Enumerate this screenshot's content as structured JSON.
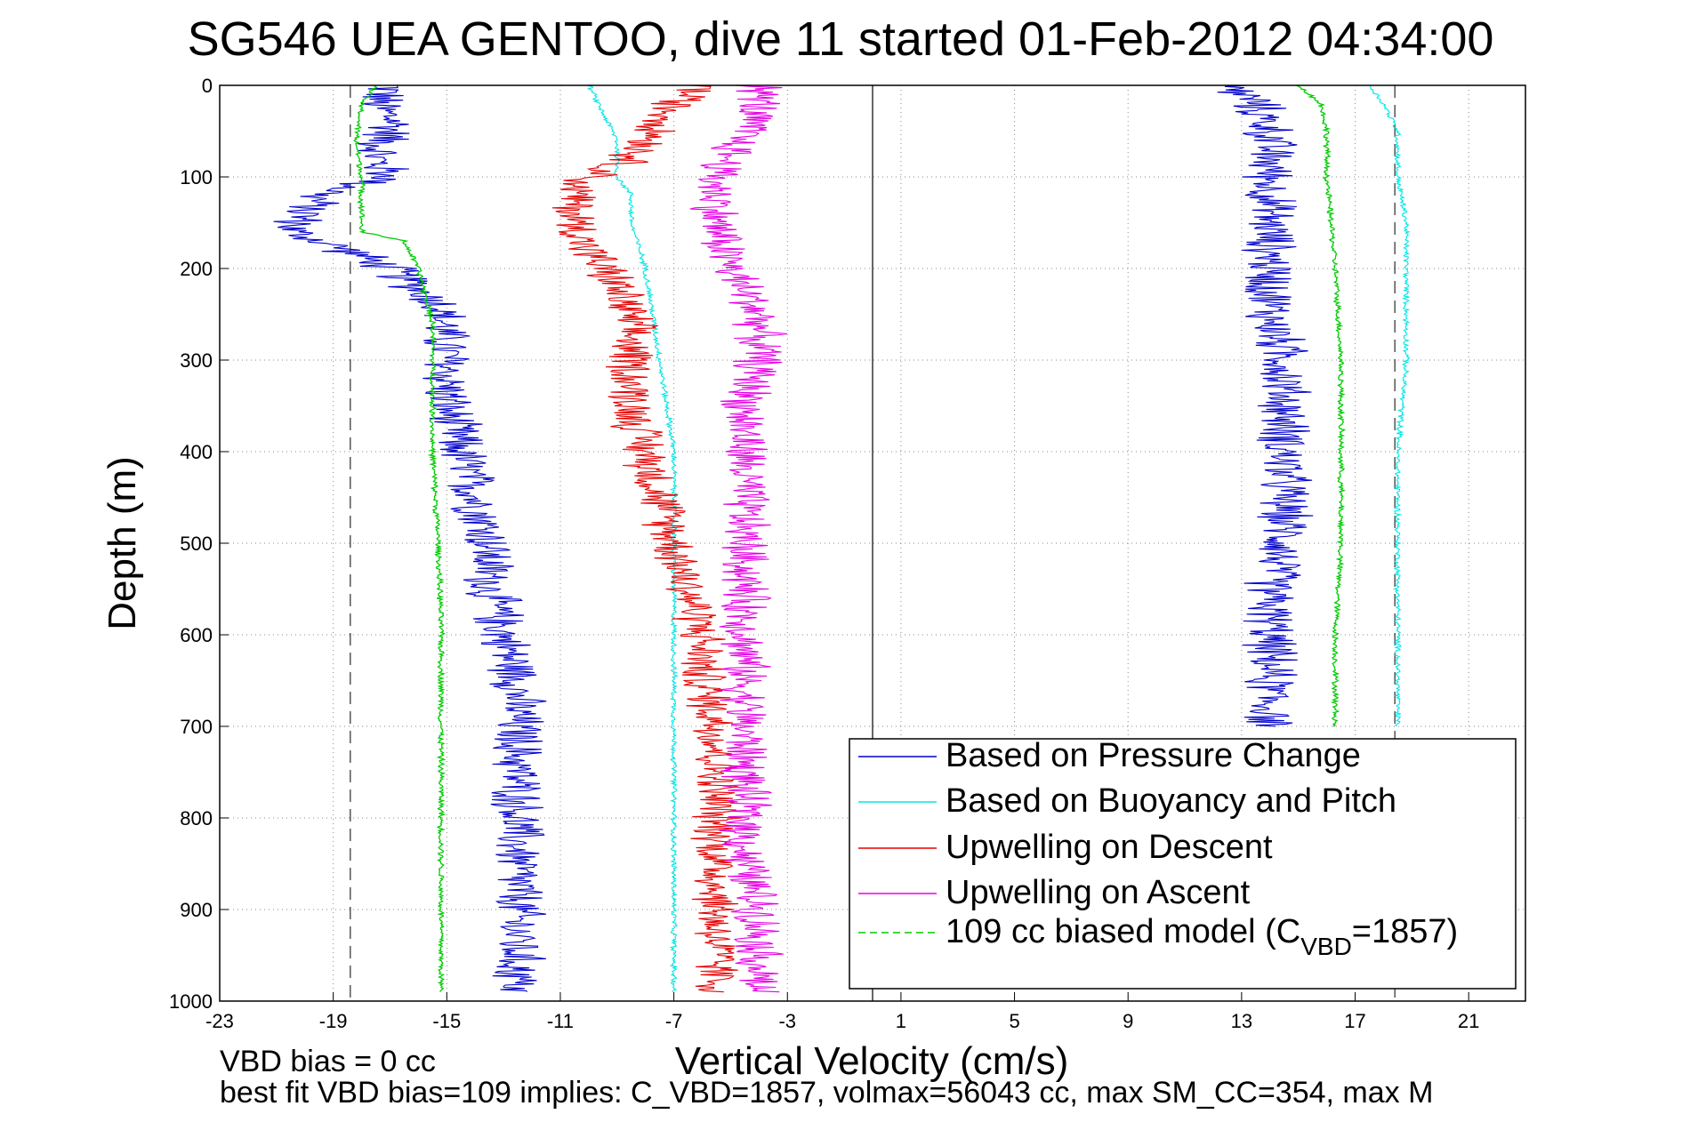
{
  "chart_data": {
    "type": "line",
    "title": "SG546 UEA GENTOO, dive 11 started 01-Feb-2012 04:34:00",
    "xlabel": "Vertical Velocity (cm/s)",
    "ylabel": "Depth (m)",
    "xlim": [
      -23,
      23
    ],
    "ylim": [
      0,
      1000
    ],
    "y_reversed": true,
    "xticks": [
      -23,
      -19,
      -15,
      -11,
      -7,
      -3,
      1,
      5,
      9,
      13,
      17,
      21
    ],
    "yticks": [
      0,
      100,
      200,
      300,
      400,
      500,
      600,
      700,
      800,
      900,
      1000
    ],
    "grid": true,
    "legend_position": "bottom-right",
    "reference_lines": {
      "vertical_zero": 0,
      "dashed_descent": -18.4,
      "dashed_ascent": 18.4
    },
    "series": [
      {
        "name": "Based on Pressure Change",
        "color": "#0000cc",
        "style": "solid",
        "noise": 1.1,
        "profiles": [
          {
            "depth": [
              0,
              20,
              40,
              60,
              80,
              100,
              120,
              140,
              160,
              180,
              200,
              240,
              300,
              350,
              400,
              450,
              500,
              550,
              600,
              650,
              700,
              750,
              800,
              850,
              900,
              950,
              990
            ],
            "value": [
              -17,
              -17.5,
              -16.8,
              -17.2,
              -17.5,
              -17,
              -19.5,
              -20,
              -20.5,
              -18.5,
              -17,
              -15.2,
              -15,
              -15,
              -14.5,
              -14,
              -13.5,
              -13.5,
              -13,
              -12.5,
              -12.5,
              -12.5,
              -12.5,
              -12.5,
              -12.5,
              -12.5,
              -12.5
            ]
          },
          {
            "depth": [
              0,
              20,
              50,
              100,
              150,
              200,
              250,
              300,
              350,
              400,
              450,
              500,
              550,
              600,
              650,
              700
            ],
            "value": [
              12.5,
              13.5,
              14,
              14,
              14,
              14,
              14,
              14.5,
              14.5,
              14.5,
              14.5,
              14.5,
              14,
              14,
              14,
              14
            ]
          }
        ]
      },
      {
        "name": "Based on Buoyancy and Pitch",
        "color": "#00e5e5",
        "style": "solid",
        "noise": 0.12,
        "profiles": [
          {
            "depth": [
              0,
              30,
              60,
              100,
              120,
              150,
              200,
              300,
              400,
              500,
              600,
              700,
              800,
              900,
              990
            ],
            "value": [
              -10,
              -9.5,
              -9,
              -9,
              -8.5,
              -8.5,
              -8,
              -7.5,
              -7,
              -7,
              -7,
              -7,
              -7,
              -7,
              -7
            ]
          },
          {
            "depth": [
              0,
              20,
              50,
              100,
              150,
              200,
              300,
              400,
              500,
              600,
              700
            ],
            "value": [
              17.5,
              18,
              18.5,
              18.5,
              18.8,
              18.8,
              18.8,
              18.5,
              18.5,
              18.5,
              18.5
            ]
          }
        ]
      },
      {
        "name": "Upwelling on Descent",
        "color": "#e50000",
        "style": "solid",
        "noise": 1.0,
        "profiles": [
          {
            "depth": [
              0,
              20,
              50,
              80,
              110,
              150,
              180,
              220,
              260,
              300,
              350,
              400,
              450,
              500,
              550,
              600,
              650,
              700,
              750,
              800,
              850,
              900,
              950,
              990
            ],
            "value": [
              -6,
              -7,
              -7.5,
              -8.5,
              -10.5,
              -10.5,
              -10,
              -9,
              -8.5,
              -8.5,
              -8.5,
              -8,
              -7.5,
              -7,
              -6.5,
              -6,
              -6,
              -5.5,
              -5.5,
              -5.5,
              -5.5,
              -5.5,
              -5.5,
              -5.5
            ]
          }
        ]
      },
      {
        "name": "Upwelling on Ascent",
        "color": "#e500e5",
        "style": "solid",
        "noise": 1.0,
        "profiles": [
          {
            "depth": [
              0,
              20,
              50,
              100,
              150,
              200,
              250,
              300,
              350,
              400,
              450,
              500,
              550,
              600,
              650,
              700,
              750,
              800,
              850,
              900,
              950,
              990
            ],
            "value": [
              -4,
              -4,
              -4.5,
              -5.5,
              -5.5,
              -5,
              -4,
              -4,
              -4.5,
              -4.5,
              -4.5,
              -4.5,
              -4.5,
              -4.5,
              -4.5,
              -4.5,
              -4.5,
              -4.5,
              -4.5,
              -4,
              -4,
              -4
            ]
          }
        ]
      },
      {
        "name": "109 cc biased model (C_VBD=1857)",
        "legend_main": "109 cc biased model (C",
        "legend_sub": "VBD",
        "legend_tail": "=1857)",
        "color": "#00cc00",
        "style": "dashed",
        "noise": 0.12,
        "profiles": [
          {
            "depth": [
              0,
              20,
              60,
              100,
              160,
              170,
              200,
              260,
              300,
              400,
              500,
              600,
              700,
              800,
              900,
              990
            ],
            "value": [
              -17.5,
              -18,
              -18.2,
              -18,
              -18,
              -16.5,
              -16,
              -15.5,
              -15.5,
              -15.5,
              -15.3,
              -15.2,
              -15.2,
              -15.2,
              -15.2,
              -15.2
            ]
          },
          {
            "depth": [
              0,
              20,
              50,
              100,
              200,
              300,
              400,
              500,
              600,
              700
            ],
            "value": [
              15,
              15.8,
              16,
              16,
              16.3,
              16.5,
              16.5,
              16.5,
              16.3,
              16.3
            ]
          }
        ]
      }
    ]
  },
  "notes": {
    "line1": "VBD bias = 0 cc",
    "line2": "best fit VBD bias=109 implies: C_VBD=1857, volmax=56043 cc, max SM_CC=354, max M"
  }
}
